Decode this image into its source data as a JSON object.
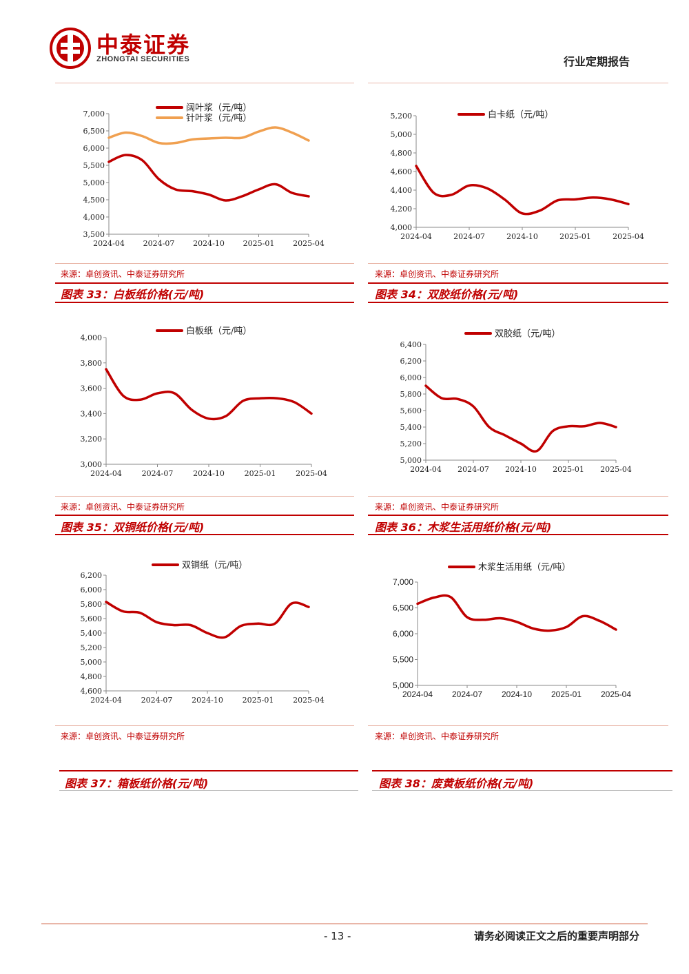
{
  "header": {
    "brand_cn": "中泰证券",
    "brand_en": "ZHONGTAI SECURITIES",
    "report_type": "行业定期报告",
    "brand_color": "#c00000"
  },
  "source_text": "来源：卓创资讯、中泰证券研究所",
  "captions": [
    "图表 33：白板纸价格(元/吨)",
    "图表 34：双胶纸价格(元/吨)",
    "图表 35：双铜纸价格(元/吨)",
    "图表 36：木浆生活用纸价格(元/吨)",
    "图表 37：箱板纸价格(元/吨)",
    "图表 38：废黄板纸价格(元/吨)"
  ],
  "footer": {
    "page_no": "- 13 -",
    "disclaimer": "请务必阅读正文之后的重要声明部分"
  },
  "chart_data": [
    {
      "type": "line",
      "x": [
        "2024-04",
        "2024-05",
        "2024-06",
        "2024-07",
        "2024-08",
        "2024-09",
        "2024-10",
        "2024-11",
        "2024-12",
        "2025-01",
        "2025-02",
        "2025-03",
        "2025-04"
      ],
      "xticks": [
        "2024-04",
        "2024-07",
        "2024-10",
        "2025-01",
        "2025-04"
      ],
      "yticks": [
        "3,500",
        "4,000",
        "4,500",
        "5,000",
        "5,500",
        "6,000",
        "6,500",
        "7,000"
      ],
      "ylim": [
        3500,
        7000
      ],
      "series": [
        {
          "name": "阔叶浆（元/吨）",
          "color": "#c00000",
          "values": [
            5600,
            5800,
            5650,
            5100,
            4800,
            4750,
            4650,
            4480,
            4600,
            4800,
            4950,
            4700,
            4600
          ]
        },
        {
          "name": "针叶浆（元/吨）",
          "color": "#f0a050",
          "values": [
            6300,
            6450,
            6350,
            6150,
            6150,
            6250,
            6280,
            6300,
            6300,
            6480,
            6600,
            6450,
            6220
          ]
        }
      ]
    },
    {
      "type": "line",
      "x": [
        "2024-04",
        "2024-05",
        "2024-06",
        "2024-07",
        "2024-08",
        "2024-09",
        "2024-10",
        "2024-11",
        "2024-12",
        "2025-01",
        "2025-02",
        "2025-03",
        "2025-04"
      ],
      "xticks": [
        "2024-04",
        "2024-07",
        "2024-10",
        "2025-01",
        "2025-04"
      ],
      "yticks": [
        "4,000",
        "4,200",
        "4,400",
        "4,600",
        "4,800",
        "5,000",
        "5,200"
      ],
      "ylim": [
        4000,
        5200
      ],
      "series": [
        {
          "name": "白卡纸（元/吨）",
          "color": "#c00000",
          "values": [
            4660,
            4370,
            4350,
            4450,
            4420,
            4300,
            4150,
            4180,
            4290,
            4300,
            4320,
            4300,
            4250
          ]
        }
      ]
    },
    {
      "type": "line",
      "x": [
        "2024-04",
        "2024-05",
        "2024-06",
        "2024-07",
        "2024-08",
        "2024-09",
        "2024-10",
        "2024-11",
        "2024-12",
        "2025-01",
        "2025-02",
        "2025-03",
        "2025-04"
      ],
      "xticks": [
        "2024-04",
        "2024-07",
        "2024-10",
        "2025-01",
        "2025-04"
      ],
      "yticks": [
        "3,000",
        "3,200",
        "3,400",
        "3,600",
        "3,800",
        "4,000"
      ],
      "ylim": [
        3000,
        4000
      ],
      "series": [
        {
          "name": "白板纸（元/吨）",
          "color": "#c00000",
          "values": [
            3750,
            3540,
            3510,
            3560,
            3560,
            3430,
            3360,
            3380,
            3500,
            3520,
            3520,
            3490,
            3400
          ]
        }
      ]
    },
    {
      "type": "line",
      "x": [
        "2024-04",
        "2024-05",
        "2024-06",
        "2024-07",
        "2024-08",
        "2024-09",
        "2024-10",
        "2024-11",
        "2024-12",
        "2025-01",
        "2025-02",
        "2025-03",
        "2025-04"
      ],
      "xticks": [
        "2024-04",
        "2024-07",
        "2024-10",
        "2025-01",
        "2025-04"
      ],
      "yticks": [
        "5,000",
        "5,200",
        "5,400",
        "5,600",
        "5,800",
        "6,000",
        "6,200",
        "6,400"
      ],
      "ylim": [
        5000,
        6400
      ],
      "series": [
        {
          "name": "双胶纸（元/吨）",
          "color": "#c00000",
          "values": [
            5900,
            5750,
            5740,
            5650,
            5400,
            5300,
            5200,
            5110,
            5350,
            5410,
            5410,
            5450,
            5400
          ]
        }
      ]
    },
    {
      "type": "line",
      "x": [
        "2024-04",
        "2024-05",
        "2024-06",
        "2024-07",
        "2024-08",
        "2024-09",
        "2024-10",
        "2024-11",
        "2024-12",
        "2025-01",
        "2025-02",
        "2025-03",
        "2025-04"
      ],
      "xticks": [
        "2024-04",
        "2024-07",
        "2024-10",
        "2025-01",
        "2025-04"
      ],
      "yticks": [
        "4,600",
        "4,800",
        "5,000",
        "5,200",
        "5,400",
        "5,600",
        "5,800",
        "6,000",
        "6,200"
      ],
      "ylim": [
        4600,
        6200
      ],
      "series": [
        {
          "name": "双铜纸（元/吨）",
          "color": "#c00000",
          "values": [
            5830,
            5700,
            5680,
            5550,
            5510,
            5510,
            5400,
            5340,
            5500,
            5530,
            5530,
            5810,
            5760
          ]
        }
      ]
    },
    {
      "type": "line",
      "x": [
        "2024-04",
        "2024-05",
        "2024-06",
        "2024-07",
        "2024-08",
        "2024-09",
        "2024-10",
        "2024-11",
        "2024-12",
        "2025-01",
        "2025-02",
        "2025-03",
        "2025-04"
      ],
      "xticks": [
        "2024-04",
        "2024-07",
        "2024-10",
        "2025-01",
        "2025-04"
      ],
      "yticks": [
        "5,000",
        "5,500",
        "6,000",
        "6,500",
        "7,000"
      ],
      "ylim": [
        5000,
        7000
      ],
      "series": [
        {
          "name": "木浆生活用纸（元/吨）",
          "color": "#c00000",
          "values": [
            6580,
            6700,
            6710,
            6320,
            6270,
            6300,
            6230,
            6100,
            6060,
            6130,
            6340,
            6250,
            6080
          ]
        }
      ]
    }
  ]
}
